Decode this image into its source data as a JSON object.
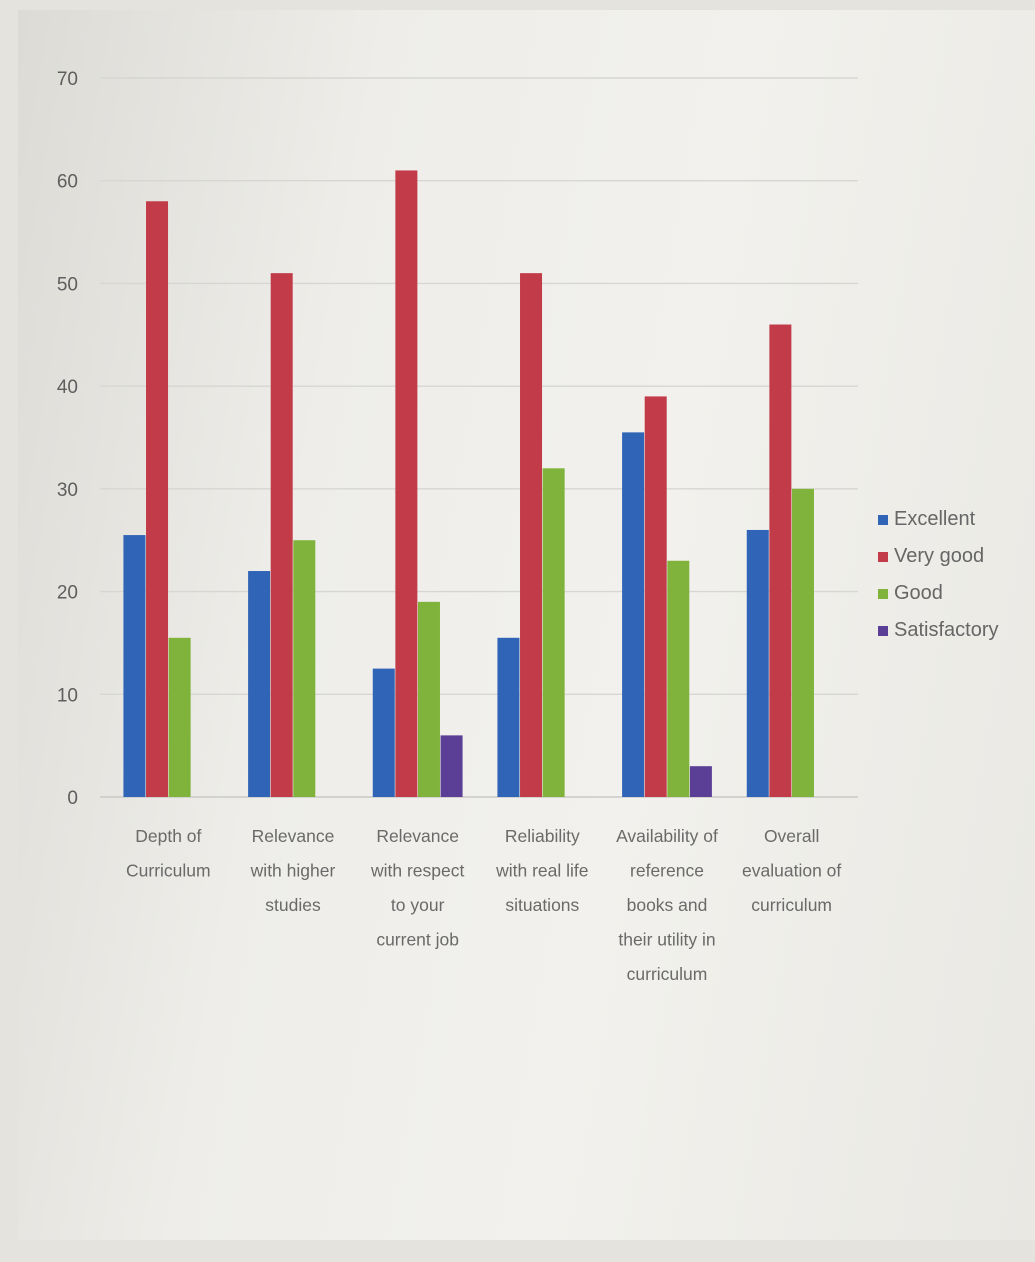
{
  "chart_data": {
    "type": "bar",
    "title": "",
    "xlabel": "",
    "ylabel": "",
    "ylim": [
      0,
      70
    ],
    "yticks": [
      0,
      10,
      20,
      30,
      40,
      50,
      60,
      70
    ],
    "grid": true,
    "legend_position": "right",
    "categories": [
      [
        "Depth of",
        "Curriculum"
      ],
      [
        "Relevance",
        "with higher",
        "studies"
      ],
      [
        "Relevance",
        "with respect",
        "to your",
        "current job"
      ],
      [
        "Reliability",
        "with real life",
        "situations"
      ],
      [
        "Availability of",
        "reference",
        "books and",
        "their utility in",
        "curriculum"
      ],
      [
        "Overall",
        "evaluation of",
        "curriculum"
      ]
    ],
    "series": [
      {
        "name": "Excellent",
        "color": "#2f64b6",
        "values": [
          25.5,
          22,
          12.5,
          15.5,
          35.5,
          26
        ]
      },
      {
        "name": "Very good",
        "color": "#c23b48",
        "values": [
          58,
          51,
          61,
          51,
          39,
          46
        ]
      },
      {
        "name": "Good",
        "color": "#7fb33c",
        "values": [
          15.5,
          25,
          19,
          32,
          23,
          30
        ]
      },
      {
        "name": "Satisfactory",
        "color": "#5b3f96",
        "values": [
          0,
          0,
          6,
          0,
          3,
          0
        ]
      }
    ]
  }
}
